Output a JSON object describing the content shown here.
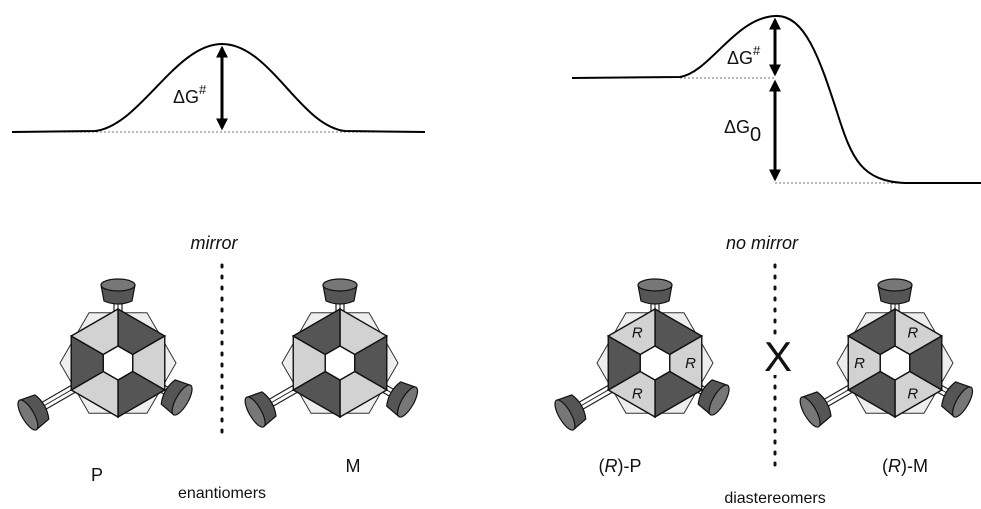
{
  "left_panel": {
    "barrier_label": {
      "base": "ΔG",
      "sup": "#"
    },
    "mirror_label": "mirror",
    "molecules": [
      {
        "name": "P"
      },
      {
        "name": "M"
      }
    ],
    "caption": "enantiomers"
  },
  "right_panel": {
    "barrier_label": {
      "base": "ΔG",
      "sup": "#"
    },
    "energy_label": {
      "base": "ΔG",
      "sub": "0"
    },
    "mirror_label": "no mirror",
    "no_mirror_mark": "X",
    "molecules": [
      {
        "prefix": "(",
        "italic": "R",
        "suffix": ")-P",
        "face_labels": [
          "R",
          "R",
          "R"
        ]
      },
      {
        "prefix": "(",
        "italic": "R",
        "suffix": ")-M",
        "face_labels": [
          "R",
          "R",
          "R"
        ]
      }
    ],
    "caption": "diastereomers"
  }
}
